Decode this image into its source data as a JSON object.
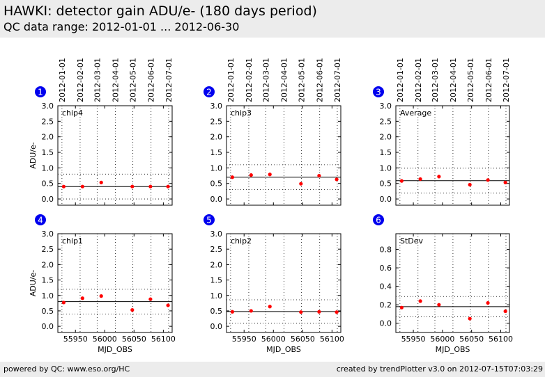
{
  "header": {
    "title": "HAWKI: detector gain ADU/e- (180 days period)",
    "subtitle": "QC data range: 2012-01-01 ... 2012-06-30",
    "background": "#ececec"
  },
  "footer": {
    "left_text": "powered by QC: www.eso.org/HC",
    "right_text": "created by trendPlotter v3.0 on 2012-07-15T07:03:29"
  },
  "colors": {
    "point": "#ff0000",
    "badge": "#0000ee",
    "grid": "#000000"
  },
  "chart_data": [
    {
      "type": "scatter",
      "panel_number": "1",
      "label": "chip4",
      "x": [
        55930,
        55962,
        55994,
        56047,
        56078,
        56108
      ],
      "y": [
        0.4,
        0.4,
        0.53,
        0.4,
        0.4,
        0.4
      ],
      "mean": 0.4,
      "band": [
        0.0,
        0.8
      ],
      "xlim": [
        55920,
        56115
      ],
      "ylim": [
        -0.2,
        3.0
      ],
      "xticks": [
        55950,
        56000,
        56050,
        56100
      ],
      "yticks": [
        0.0,
        0.5,
        1.0,
        1.5,
        2.0,
        2.5,
        3.0
      ],
      "ytick_labels": [
        "0.0",
        "0.5",
        "1.0",
        "1.5",
        "2.0",
        "2.5",
        "3.0"
      ],
      "top_ticks": [
        "2012-01-01",
        "2012-02-01",
        "2012-03-01",
        "2012-04-01",
        "2012-05-01",
        "2012-06-01",
        "2012-07-01"
      ],
      "ylabel": "ADU/e-",
      "xlabel": ""
    },
    {
      "type": "scatter",
      "panel_number": "2",
      "label": "chip3",
      "x": [
        55930,
        55962,
        55994,
        56047,
        56078,
        56108
      ],
      "y": [
        0.7,
        0.77,
        0.79,
        0.49,
        0.75,
        0.63
      ],
      "mean": 0.7,
      "band": [
        0.3,
        1.1
      ],
      "xlim": [
        55920,
        56115
      ],
      "ylim": [
        -0.2,
        3.0
      ],
      "xticks": [
        55950,
        56000,
        56050,
        56100
      ],
      "yticks": [
        0.0,
        0.5,
        1.0,
        1.5,
        2.0,
        2.5,
        3.0
      ],
      "ytick_labels": [
        "0.0",
        "0.5",
        "1.0",
        "1.5",
        "2.0",
        "2.5",
        "3.0"
      ],
      "top_ticks": [
        "2012-01-01",
        "2012-02-01",
        "2012-03-01",
        "2012-04-01",
        "2012-05-01",
        "2012-06-01",
        "2012-07-01"
      ],
      "ylabel": "",
      "xlabel": ""
    },
    {
      "type": "scatter",
      "panel_number": "3",
      "label": "Average",
      "x": [
        55930,
        55962,
        55994,
        56047,
        56078,
        56108
      ],
      "y": [
        0.58,
        0.64,
        0.72,
        0.46,
        0.61,
        0.53
      ],
      "mean": 0.59,
      "band": [
        0.19,
        0.99
      ],
      "xlim": [
        55920,
        56115
      ],
      "ylim": [
        -0.2,
        3.0
      ],
      "xticks": [
        55950,
        56000,
        56050,
        56100
      ],
      "yticks": [
        0.0,
        0.5,
        1.0,
        1.5,
        2.0,
        2.5,
        3.0
      ],
      "ytick_labels": [
        "0.0",
        "0.5",
        "1.0",
        "1.5",
        "2.0",
        "2.5",
        "3.0"
      ],
      "top_ticks": [
        "2012-01-01",
        "2012-02-01",
        "2012-03-01",
        "2012-04-01",
        "2012-05-01",
        "2012-06-01",
        "2012-07-01"
      ],
      "ylabel": "",
      "xlabel": ""
    },
    {
      "type": "scatter",
      "panel_number": "4",
      "label": "chip1",
      "x": [
        55930,
        55962,
        55994,
        56047,
        56078,
        56108
      ],
      "y": [
        0.77,
        0.91,
        0.98,
        0.53,
        0.88,
        0.68
      ],
      "mean": 0.8,
      "band": [
        0.4,
        1.2
      ],
      "xlim": [
        55920,
        56115
      ],
      "ylim": [
        -0.2,
        3.0
      ],
      "xticks": [
        55950,
        56000,
        56050,
        56100
      ],
      "xtick_labels": [
        "55950",
        "56000",
        "56050",
        "56100"
      ],
      "yticks": [
        0.0,
        0.5,
        1.0,
        1.5,
        2.0,
        2.5,
        3.0
      ],
      "ytick_labels": [
        "0.0",
        "0.5",
        "1.0",
        "1.5",
        "2.0",
        "2.5",
        "3.0"
      ],
      "ylabel": "ADU/e-",
      "xlabel": "MJD_OBS"
    },
    {
      "type": "scatter",
      "panel_number": "5",
      "label": "chip2",
      "x": [
        55930,
        55962,
        55994,
        56047,
        56078,
        56108
      ],
      "y": [
        0.47,
        0.5,
        0.64,
        0.46,
        0.47,
        0.46
      ],
      "mean": 0.48,
      "band": [
        0.1,
        0.86
      ],
      "xlim": [
        55920,
        56115
      ],
      "ylim": [
        -0.2,
        3.0
      ],
      "xticks": [
        55950,
        56000,
        56050,
        56100
      ],
      "xtick_labels": [
        "55950",
        "56000",
        "56050",
        "56100"
      ],
      "yticks": [
        0.0,
        0.5,
        1.0,
        1.5,
        2.0,
        2.5,
        3.0
      ],
      "ytick_labels": [
        "0.0",
        "0.5",
        "1.0",
        "1.5",
        "2.0",
        "2.5",
        "3.0"
      ],
      "ylabel": "",
      "xlabel": "MJD_OBS"
    },
    {
      "type": "scatter",
      "panel_number": "6",
      "label": "StDev",
      "x": [
        55930,
        55962,
        55994,
        56047,
        56078,
        56108
      ],
      "y": [
        0.17,
        0.24,
        0.2,
        0.05,
        0.22,
        0.13
      ],
      "mean": 0.18,
      "band": [
        0.07,
        0.29
      ],
      "xlim": [
        55920,
        56115
      ],
      "ylim": [
        -0.1,
        0.97
      ],
      "xticks": [
        55950,
        56000,
        56050,
        56100
      ],
      "xtick_labels": [
        "55950",
        "56000",
        "56050",
        "56100"
      ],
      "yticks": [
        0.0,
        0.2,
        0.4,
        0.6,
        0.8
      ],
      "ytick_labels": [
        "0.0",
        "0.2",
        "0.4",
        "0.6",
        "0.8"
      ],
      "ylabel": "",
      "xlabel": "MJD_OBS"
    }
  ]
}
